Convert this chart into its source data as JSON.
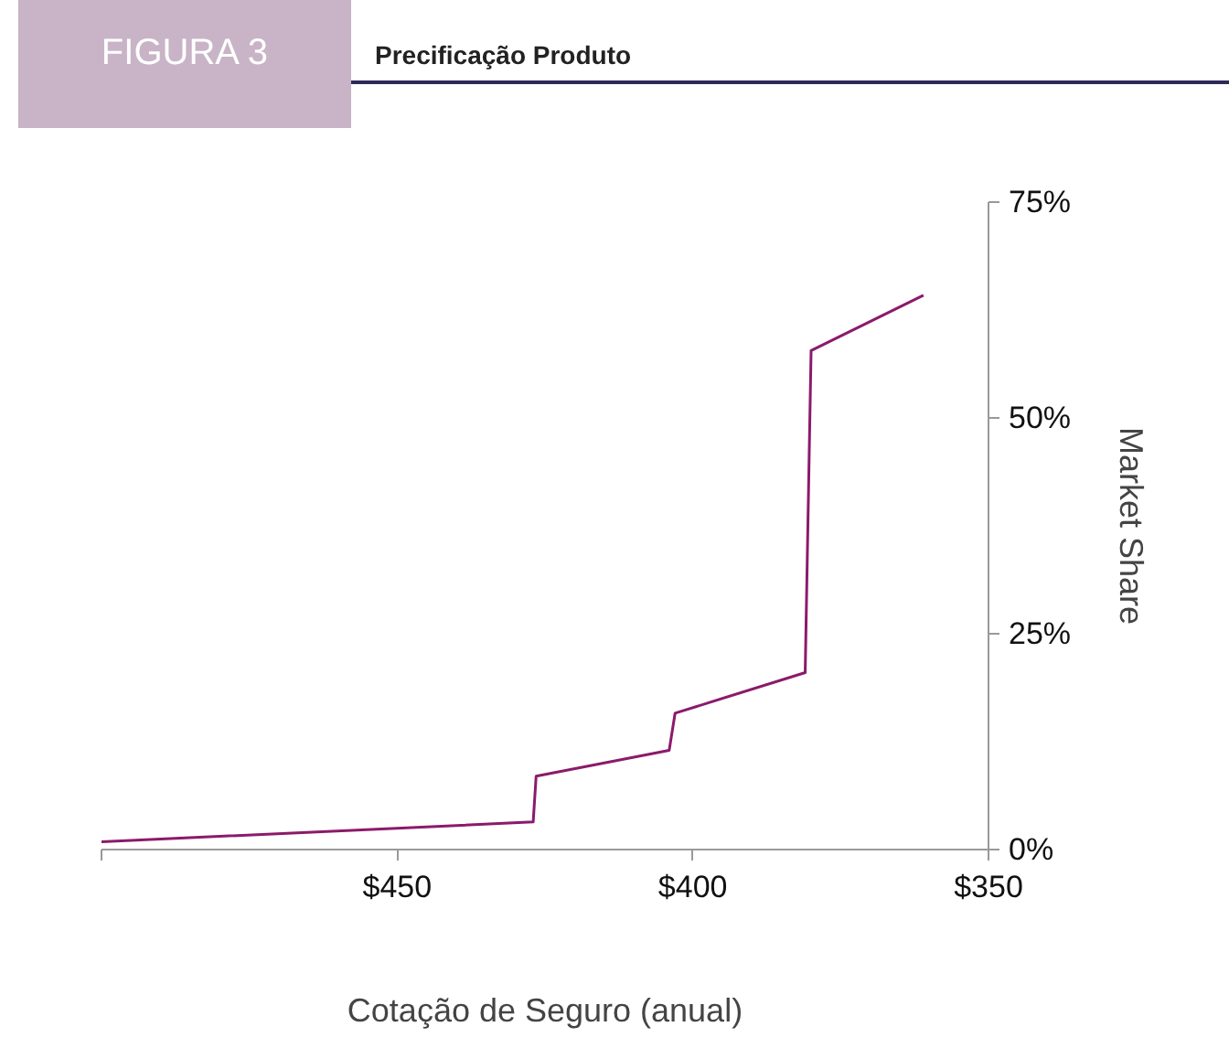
{
  "chart_data": {
    "type": "line",
    "title": "FIGURA 3",
    "subtitle": "Precificação Produto",
    "xlabel": "Cotação de Seguro (anual)",
    "ylabel": "Market Share",
    "x": [
      500,
      427,
      426.5,
      404,
      403,
      381,
      380,
      361
    ],
    "series": [
      {
        "color": "#8b1a6b",
        "values": [
          0.9,
          3.2,
          8.5,
          11.5,
          15.8,
          20.5,
          57.8,
          64.2
        ]
      }
    ],
    "xlim": [
      500,
      350
    ],
    "xticks": [
      {
        "value": 500,
        "label": null
      },
      {
        "value": 450,
        "label": "$450"
      },
      {
        "value": 400,
        "label": "$400"
      },
      {
        "value": 350,
        "label": "$350"
      }
    ],
    "ylim": [
      0,
      75
    ],
    "yticks": [
      {
        "value": 0,
        "label": "0%"
      },
      {
        "value": 25,
        "label": "25%"
      },
      {
        "value": 50,
        "label": "50%"
      },
      {
        "value": 75,
        "label": "75%"
      }
    ],
    "grid": false,
    "marker": "none",
    "line_style": "solid"
  }
}
